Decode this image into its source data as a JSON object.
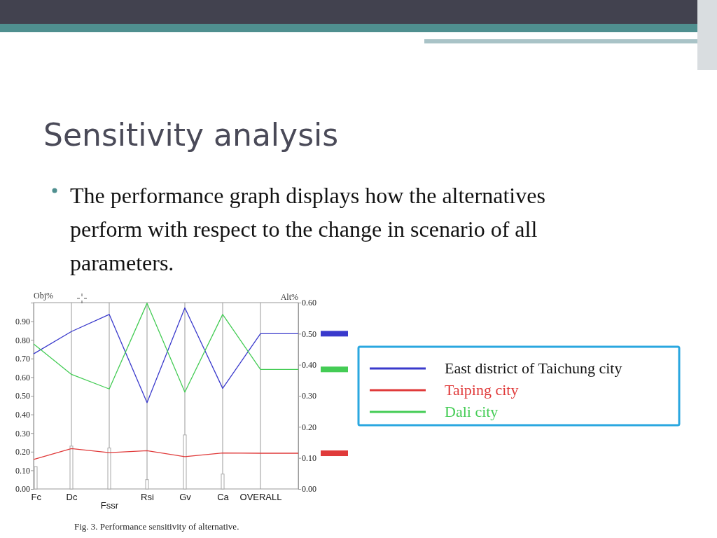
{
  "chart_data": {
    "type": "bar",
    "title": "Sensitivity analysis",
    "subtitle": "The performance graph displays how the alternatives perform with respect to the change in scenario of all parameters.",
    "ylabel": "Obj%",
    "y2label": "Alt%",
    "categories": [
      "Fc",
      "Dc",
      "Fssr",
      "Rsi",
      "Gv",
      "Ca",
      "OVERALL",
      null
    ],
    "series": [
      {
        "axis": "y",
        "color": "#a8a8a8",
        "values": [
          0.12,
          0.23,
          0.22,
          0.05,
          0.29,
          0.08,
          null,
          null
        ]
      },
      {
        "type": "line",
        "axis": "y2",
        "name": "East district of Taichung city",
        "color": "#3a3acc",
        "values": [
          0.435,
          0.507,
          0.562,
          0.278,
          0.583,
          0.324,
          0.5,
          0.5
        ]
      },
      {
        "type": "line",
        "axis": "y2",
        "name": "Taiping city",
        "color": "#e03a3a",
        "values": [
          0.095,
          0.13,
          0.117,
          0.123,
          0.104,
          0.116,
          0.115,
          0.115
        ]
      },
      {
        "type": "line",
        "axis": "y2",
        "name": "Dali city",
        "color": "#44cc55",
        "values": [
          0.467,
          0.369,
          0.322,
          0.598,
          0.312,
          0.562,
          0.385,
          0.385
        ]
      }
    ],
    "ylim": [
      0,
      1.0
    ],
    "yticks": [
      {
        "value": 0,
        "label": "0.00"
      },
      {
        "value": 0.1,
        "label": "0.10"
      },
      {
        "value": 0.2,
        "label": "0.20"
      },
      {
        "value": 0.3,
        "label": "0.30"
      },
      {
        "value": 0.4,
        "label": "0.40"
      },
      {
        "value": 0.5,
        "label": "0.50"
      },
      {
        "value": 0.6,
        "label": "0.60"
      },
      {
        "value": 0.7,
        "label": "0.70"
      },
      {
        "value": 0.8,
        "label": "0.80"
      },
      {
        "value": 0.9,
        "label": "0.90"
      }
    ],
    "y2lim": [
      0,
      0.6
    ],
    "y2ticks": [
      {
        "value": 0,
        "label": "0.00"
      },
      {
        "value": 0.1,
        "label": "0.10"
      },
      {
        "value": 0.2,
        "label": "0.20"
      },
      {
        "value": 0.3,
        "label": "0.30"
      },
      {
        "value": 0.4,
        "label": "0.40"
      },
      {
        "value": 0.5,
        "label": "0.50"
      },
      {
        "value": 0.6,
        "label": "0.60"
      }
    ],
    "grid": "x",
    "legend": "right",
    "annotations": [
      "Fig. 3. Performance sensitivity of alternative."
    ]
  }
}
